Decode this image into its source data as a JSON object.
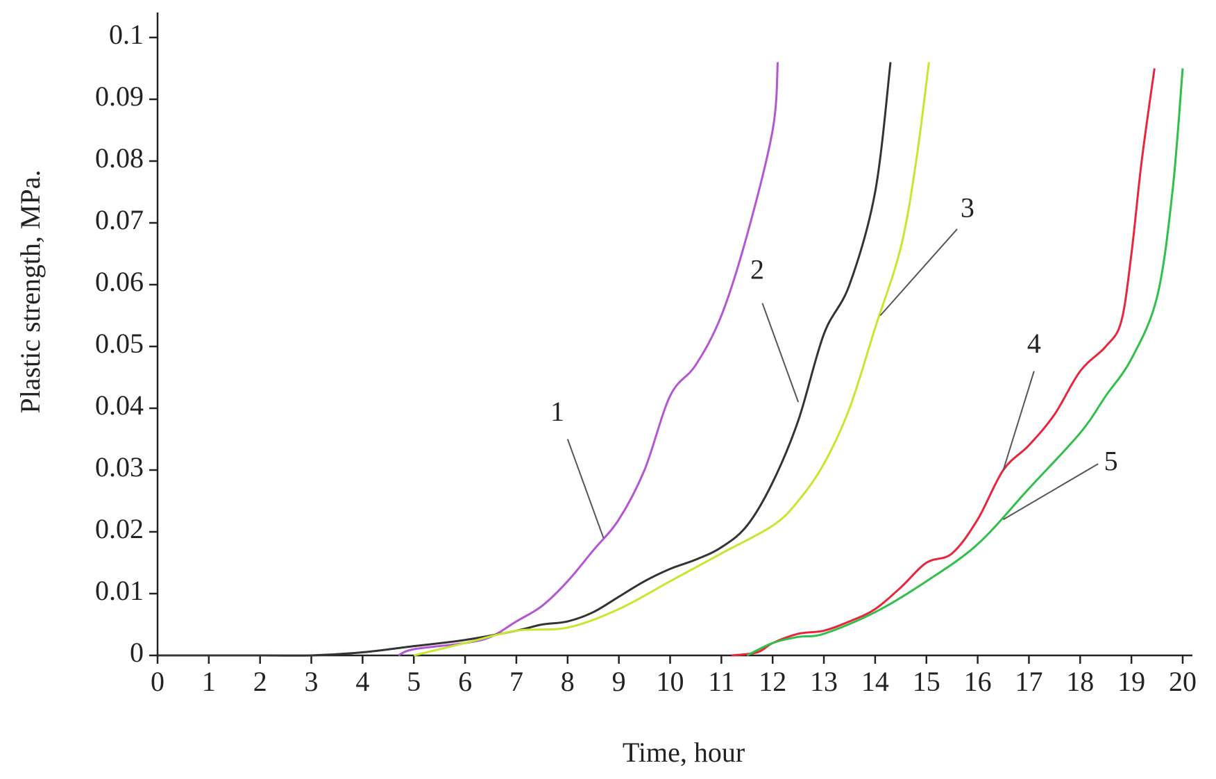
{
  "chart_data": {
    "type": "line",
    "xlabel": "Time, hour",
    "ylabel": "Plastic strength, MPa.",
    "xlim": [
      0,
      20
    ],
    "xticks": [
      0,
      1,
      2,
      3,
      4,
      5,
      6,
      7,
      8,
      9,
      10,
      11,
      12,
      13,
      14,
      15,
      16,
      17,
      18,
      19,
      20
    ],
    "ylim": [
      0,
      0.1
    ],
    "yticks": [
      0,
      0.01,
      0.02,
      0.03,
      0.04,
      0.05,
      0.06,
      0.07,
      0.08,
      0.09,
      0.1
    ],
    "grid": false,
    "series": [
      {
        "name": "1",
        "color": "#b455d6",
        "x": [
          4.7,
          5,
          6,
          6.5,
          7,
          7.5,
          8,
          8.5,
          9,
          9.5,
          10,
          10.5,
          11,
          11.5,
          12,
          12.1
        ],
        "values": [
          0,
          0.001,
          0.002,
          0.003,
          0.0055,
          0.008,
          0.012,
          0.017,
          0.022,
          0.03,
          0.042,
          0.047,
          0.055,
          0.068,
          0.085,
          0.096
        ]
      },
      {
        "name": "2",
        "color": "#333333",
        "x": [
          0,
          1,
          2,
          3,
          4,
          5,
          6,
          7,
          7.5,
          8,
          8.5,
          9,
          9.5,
          10,
          10.5,
          11,
          11.5,
          12,
          12.5,
          13,
          13.5,
          14,
          14.3
        ],
        "values": [
          0,
          0,
          0,
          0,
          0.0005,
          0.0015,
          0.0025,
          0.004,
          0.005,
          0.0055,
          0.007,
          0.0095,
          0.012,
          0.014,
          0.0155,
          0.0175,
          0.021,
          0.028,
          0.038,
          0.052,
          0.06,
          0.075,
          0.096
        ]
      },
      {
        "name": "3",
        "color": "#c9e62e",
        "x": [
          5,
          6,
          7,
          8,
          9,
          10,
          11,
          12,
          12.5,
          13,
          13.5,
          14,
          14.5,
          14.8,
          15.05
        ],
        "values": [
          0,
          0.002,
          0.004,
          0.0045,
          0.0075,
          0.012,
          0.0165,
          0.021,
          0.025,
          0.031,
          0.04,
          0.053,
          0.066,
          0.08,
          0.096
        ]
      },
      {
        "name": "4",
        "color": "#e8253a",
        "x": [
          11.2,
          11.7,
          12,
          12.5,
          13,
          13.5,
          14,
          14.5,
          15,
          15.5,
          16,
          16.5,
          17,
          17.5,
          18,
          18.5,
          18.8,
          19,
          19.2,
          19.45
        ],
        "values": [
          0,
          0.0005,
          0.002,
          0.0035,
          0.004,
          0.0055,
          0.0075,
          0.011,
          0.015,
          0.0165,
          0.022,
          0.03,
          0.034,
          0.039,
          0.046,
          0.05,
          0.054,
          0.065,
          0.08,
          0.095
        ]
      },
      {
        "name": "5",
        "color": "#2fbf4a",
        "x": [
          11.5,
          12,
          12.5,
          13,
          14,
          15,
          16,
          17,
          18,
          18.5,
          19,
          19.5,
          19.8,
          20
        ],
        "values": [
          0,
          0.002,
          0.003,
          0.0035,
          0.007,
          0.012,
          0.018,
          0.027,
          0.036,
          0.042,
          0.048,
          0.058,
          0.075,
          0.095
        ]
      }
    ]
  }
}
